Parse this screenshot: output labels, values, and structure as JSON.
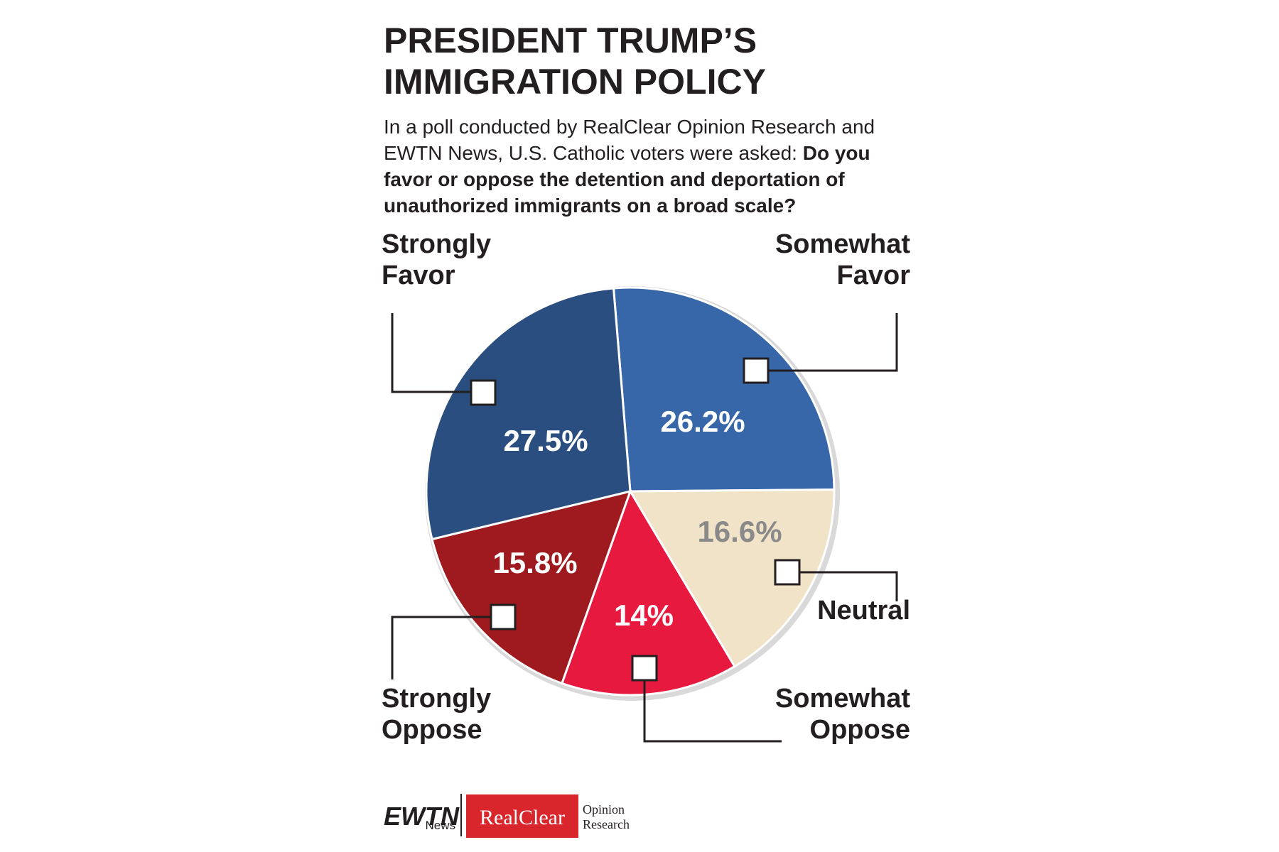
{
  "chart_data": {
    "type": "pie",
    "title": "PRESIDENT TRUMP’S IMMIGRATION POLICY",
    "subtitle": "In a poll conducted by RealClear Opinion Research and EWTN News, U.S. Catholic voters were asked:",
    "question": "Do you favor or oppose the detention and deportation of unauthorized immigrants on a broad scale?",
    "categories": [
      "Somewhat Favor",
      "Neutral",
      "Somewhat Oppose",
      "Strongly Oppose",
      "Strongly Favor"
    ],
    "values": [
      26.2,
      16.6,
      14,
      15.8,
      27.5
    ],
    "value_labels": [
      "26.2%",
      "16.6%",
      "14%",
      "15.8%",
      "27.5%"
    ],
    "colors": [
      "#3767a8",
      "#f0e3c7",
      "#e8193f",
      "#9e1a1e",
      "#2b4e80"
    ],
    "footer": {
      "brand": "EWTN",
      "brand_sub": "News",
      "partner": "RealClear",
      "partner_sub": "Opinion Research"
    }
  }
}
